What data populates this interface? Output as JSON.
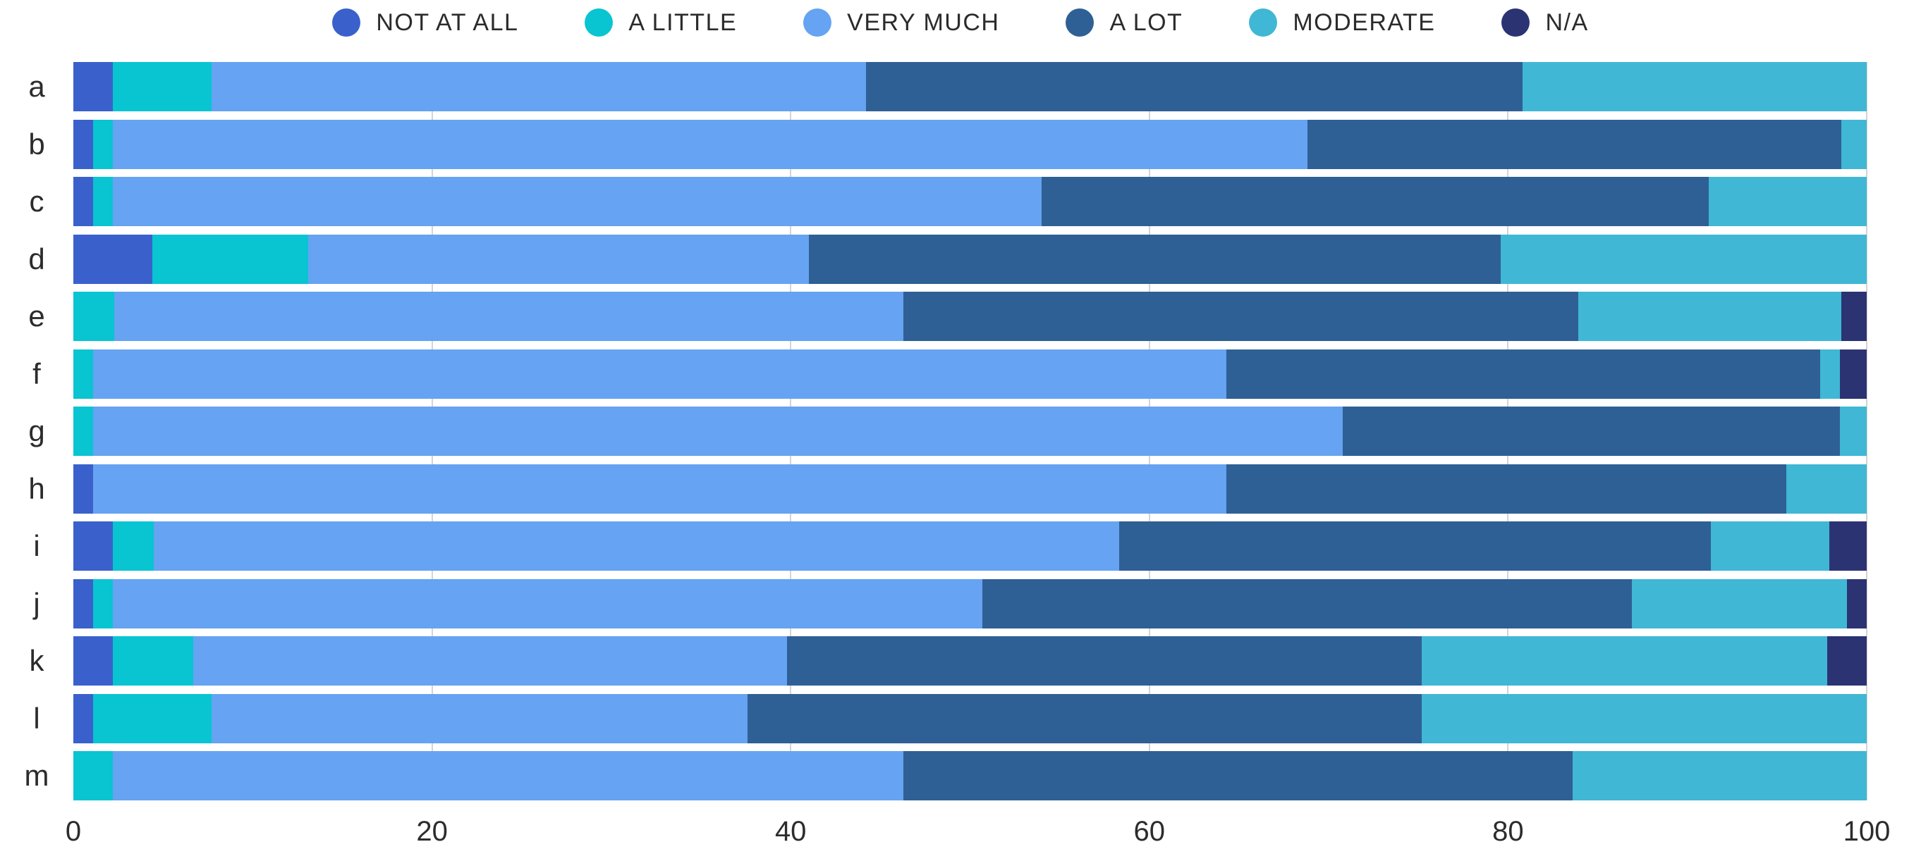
{
  "chart_data": {
    "type": "bar",
    "variant": "horizontal-stacked-100",
    "title": "",
    "xlabel": "",
    "ylabel": "",
    "x_axis": {
      "min": 0,
      "max": 100,
      "ticks": [
        0,
        20,
        40,
        60,
        80,
        100
      ]
    },
    "grid": "vertical-light-gray-at-ticks",
    "legend_position": "top-center",
    "categories": [
      "a",
      "b",
      "c",
      "d",
      "e",
      "f",
      "g",
      "h",
      "i",
      "j",
      "k",
      "l",
      "m"
    ],
    "series": [
      {
        "name": "NOT AT ALL",
        "color": "#3a61cb",
        "values": [
          2.2,
          1.1,
          1.1,
          4.4,
          0,
          0,
          0,
          1.1,
          2.2,
          1.1,
          2.2,
          1.1,
          0
        ]
      },
      {
        "name": "A LITTLE",
        "color": "#09c4d1",
        "values": [
          5.5,
          1.1,
          1.1,
          8.7,
          2.3,
          1.1,
          1.1,
          0,
          2.3,
          1.1,
          4.5,
          6.6,
          2.2
        ]
      },
      {
        "name": "VERY MUCH",
        "color": "#66a3f2",
        "values": [
          36.5,
          66.6,
          51.8,
          27.9,
          44.0,
          63.2,
          69.7,
          63.2,
          53.8,
          48.5,
          33.1,
          29.9,
          44.1
        ]
      },
      {
        "name": "A LOT",
        "color": "#2e6095",
        "values": [
          36.6,
          29.8,
          37.2,
          38.6,
          37.6,
          33.1,
          27.7,
          31.2,
          33.0,
          36.2,
          35.4,
          37.6,
          37.3
        ]
      },
      {
        "name": "MODERATE",
        "color": "#40b7d5",
        "values": [
          19.2,
          1.4,
          8.8,
          20.4,
          14.7,
          1.1,
          1.5,
          4.5,
          6.6,
          12.0,
          22.6,
          24.8,
          16.4
        ]
      },
      {
        "name": "N/A",
        "color": "#2c3373",
        "values": [
          0,
          0,
          0,
          0,
          1.4,
          1.5,
          0,
          0,
          2.1,
          1.1,
          2.2,
          0,
          0
        ]
      }
    ]
  },
  "styles": {
    "background": "#ffffff",
    "text_color": "#2b2b2b",
    "gridline_color": "#d4d4d4"
  }
}
